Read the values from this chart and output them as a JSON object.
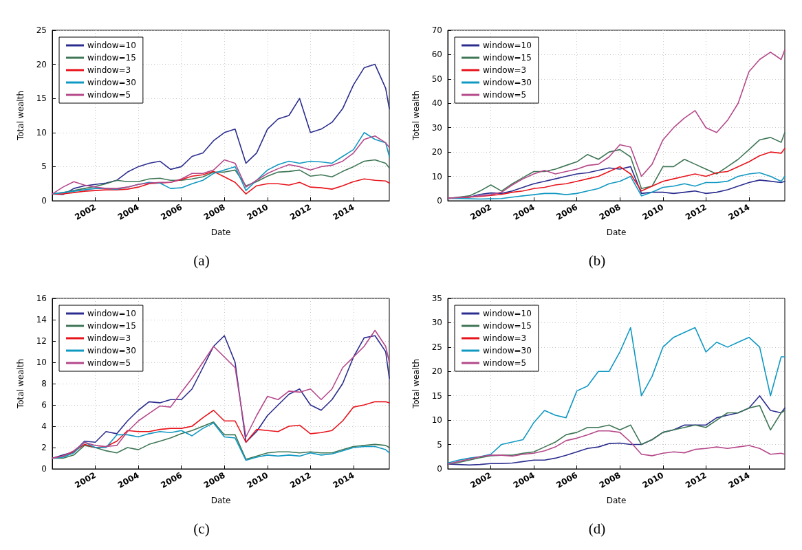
{
  "chart_data": [
    {
      "type": "line",
      "title": "(a)",
      "xlabel": "Date",
      "ylabel": "Total wealth",
      "grid": true,
      "legend": "top left",
      "x": [
        "2000-01",
        "2000-07",
        "2001-01",
        "2001-07",
        "2002-01",
        "2002-07",
        "2003-01",
        "2003-07",
        "2004-01",
        "2004-07",
        "2005-01",
        "2005-07",
        "2006-01",
        "2006-07",
        "2007-01",
        "2007-07",
        "2008-01",
        "2008-07",
        "2009-01",
        "2009-07",
        "2010-01",
        "2010-07",
        "2011-01",
        "2011-07",
        "2012-01",
        "2012-07",
        "2013-01",
        "2013-07",
        "2014-01",
        "2014-07",
        "2015-01",
        "2015-07",
        "2015-09"
      ],
      "xlim": [
        "2000-01",
        "2015-09"
      ],
      "xticks": [
        "2002",
        "2004",
        "2006",
        "2008",
        "2010",
        "2012",
        "2014"
      ],
      "ylim": [
        0,
        25
      ],
      "yticks": [
        0,
        5,
        10,
        15,
        20,
        25
      ],
      "series": [
        {
          "name": "window=10",
          "color": "#2b2d8e",
          "values": [
            1,
            0.9,
            1.8,
            2.2,
            2.4,
            2.6,
            3.0,
            4.2,
            5.0,
            5.5,
            5.8,
            4.6,
            5.0,
            6.5,
            7.0,
            8.8,
            10.0,
            10.5,
            5.5,
            7.0,
            10.5,
            12.0,
            12.5,
            15.0,
            10.0,
            10.5,
            11.5,
            13.5,
            17.0,
            19.5,
            20.0,
            16.5,
            13.5
          ]
        },
        {
          "name": "window=15",
          "color": "#3f7656",
          "values": [
            1,
            1.2,
            1.5,
            1.8,
            2.1,
            2.5,
            3.0,
            2.8,
            2.8,
            3.2,
            3.3,
            3.0,
            3.0,
            3.2,
            3.5,
            4.2,
            4.2,
            4.5,
            2.2,
            2.8,
            3.6,
            4.2,
            4.3,
            4.5,
            3.6,
            3.8,
            3.5,
            4.3,
            5.0,
            5.8,
            6.0,
            5.5,
            4.8
          ]
        },
        {
          "name": "window=3",
          "color": "#e8141c",
          "values": [
            1,
            1.0,
            1.2,
            1.4,
            1.5,
            1.6,
            1.6,
            1.7,
            2.0,
            2.5,
            2.6,
            2.7,
            3.1,
            3.6,
            3.8,
            4.3,
            3.5,
            2.7,
            1.0,
            2.2,
            2.5,
            2.5,
            2.3,
            2.7,
            2.0,
            1.9,
            1.7,
            2.2,
            2.8,
            3.2,
            3.0,
            2.9,
            2.6
          ]
        },
        {
          "name": "window=30",
          "color": "#0f98c2",
          "values": [
            1,
            1.2,
            1.4,
            1.6,
            1.8,
            1.8,
            1.7,
            2.0,
            2.4,
            2.7,
            2.6,
            1.8,
            1.9,
            2.5,
            3.0,
            4.0,
            4.5,
            5.0,
            1.5,
            3.0,
            4.5,
            5.3,
            5.8,
            5.5,
            5.8,
            5.7,
            5.5,
            6.5,
            7.5,
            10.0,
            9.0,
            8.5,
            6.5
          ]
        },
        {
          "name": "window=5",
          "color": "#b5488a",
          "values": [
            1,
            2.0,
            2.8,
            2.3,
            2.0,
            1.8,
            1.8,
            2.0,
            2.4,
            2.6,
            2.7,
            2.7,
            3.2,
            4.0,
            4.0,
            4.5,
            6.0,
            5.5,
            2.0,
            3.0,
            4.0,
            4.7,
            5.3,
            5.0,
            4.5,
            5.0,
            5.2,
            5.8,
            7.0,
            9.0,
            9.5,
            8.5,
            7.8
          ]
        }
      ]
    },
    {
      "type": "line",
      "title": "(b)",
      "xlabel": "Date",
      "ylabel": "Total wealth",
      "grid": true,
      "legend": "top left",
      "x": [
        "2000-01",
        "2000-07",
        "2001-01",
        "2001-07",
        "2002-01",
        "2002-07",
        "2003-01",
        "2003-07",
        "2004-01",
        "2004-07",
        "2005-01",
        "2005-07",
        "2006-01",
        "2006-07",
        "2007-01",
        "2007-07",
        "2008-01",
        "2008-07",
        "2009-01",
        "2009-07",
        "2010-01",
        "2010-07",
        "2011-01",
        "2011-07",
        "2012-01",
        "2012-07",
        "2013-01",
        "2013-07",
        "2014-01",
        "2014-07",
        "2015-01",
        "2015-07",
        "2015-09"
      ],
      "xlim": [
        "2000-01",
        "2015-09"
      ],
      "xticks": [
        "2002",
        "2004",
        "2006",
        "2008",
        "2010",
        "2012",
        "2014"
      ],
      "ylim": [
        0,
        70
      ],
      "yticks": [
        0,
        10,
        20,
        30,
        40,
        50,
        60,
        70
      ],
      "series": [
        {
          "name": "window=10",
          "color": "#2b2d8e",
          "values": [
            1,
            1.2,
            1.5,
            2.6,
            3.2,
            3,
            4,
            5.5,
            7,
            8,
            9,
            10,
            11,
            11.5,
            12.5,
            13.5,
            13,
            14,
            3,
            3.5,
            3.5,
            3,
            3.5,
            4,
            3,
            3.5,
            4.5,
            6,
            7.5,
            8.5,
            8,
            7.5,
            8
          ]
        },
        {
          "name": "window=15",
          "color": "#3f7656",
          "values": [
            1,
            1.5,
            2,
            4,
            6.5,
            4,
            7,
            9.5,
            12,
            12,
            13,
            14.5,
            16,
            19,
            17,
            20,
            21,
            18,
            5,
            6,
            14,
            14,
            17,
            15,
            13,
            11,
            14,
            17,
            21,
            25,
            26,
            24,
            28
          ]
        },
        {
          "name": "window=3",
          "color": "#e8141c",
          "values": [
            1,
            1.2,
            1.5,
            1.8,
            2.2,
            2.6,
            3.5,
            4,
            5,
            5.5,
            6.5,
            7,
            8,
            9,
            10,
            12,
            14,
            11,
            4,
            6,
            8,
            9,
            10,
            11,
            10,
            11.5,
            12,
            14,
            16,
            18.5,
            20,
            19.5,
            21.5
          ]
        },
        {
          "name": "window=30",
          "color": "#0f98c2",
          "values": [
            1,
            0.9,
            0.8,
            0.7,
            0.8,
            0.9,
            1.5,
            2,
            2.5,
            3,
            3,
            2.5,
            3,
            4,
            5,
            7,
            8,
            10,
            2,
            3.5,
            5.5,
            6,
            7,
            6,
            7.5,
            7.5,
            8,
            10,
            11,
            11.5,
            10,
            8,
            10
          ]
        },
        {
          "name": "window=5",
          "color": "#b5488a",
          "values": [
            1,
            1.3,
            1.6,
            2,
            2.5,
            3.5,
            6.5,
            9,
            11,
            12.5,
            11,
            12,
            13,
            14.5,
            15,
            18,
            23,
            22,
            10,
            15,
            25,
            30,
            34,
            37,
            30,
            28,
            33,
            40,
            53,
            58,
            61,
            58,
            62
          ]
        }
      ]
    },
    {
      "type": "line",
      "title": "(c)",
      "xlabel": "Date",
      "ylabel": "Total wealth",
      "grid": true,
      "legend": "top left",
      "x": [
        "2000-01",
        "2000-07",
        "2001-01",
        "2001-07",
        "2002-01",
        "2002-07",
        "2003-01",
        "2003-07",
        "2004-01",
        "2004-07",
        "2005-01",
        "2005-07",
        "2006-01",
        "2006-07",
        "2007-01",
        "2007-07",
        "2008-01",
        "2008-07",
        "2009-01",
        "2009-07",
        "2010-01",
        "2010-07",
        "2011-01",
        "2011-07",
        "2012-01",
        "2012-07",
        "2013-01",
        "2013-07",
        "2014-01",
        "2014-07",
        "2015-01",
        "2015-07",
        "2015-09"
      ],
      "xlim": [
        "2000-01",
        "2015-09"
      ],
      "xticks": [
        "2002",
        "2004",
        "2006",
        "2008",
        "2010",
        "2012",
        "2014"
      ],
      "ylim": [
        0,
        16
      ],
      "yticks": [
        0,
        2,
        4,
        6,
        8,
        10,
        12,
        14,
        16
      ],
      "series": [
        {
          "name": "window=10",
          "color": "#2b2d8e",
          "values": [
            1,
            1.3,
            1.6,
            2.6,
            2.5,
            3.5,
            3.3,
            4.5,
            5.5,
            6.3,
            6.2,
            6.5,
            6.5,
            7.5,
            9.5,
            11.5,
            12.5,
            10,
            2.5,
            3.5,
            5,
            6,
            7,
            7.5,
            6,
            5.5,
            6.5,
            8,
            10.5,
            12.3,
            12.5,
            11,
            8.5
          ]
        },
        {
          "name": "window=15",
          "color": "#3f7656",
          "values": [
            1,
            1.0,
            1.3,
            2.2,
            2.0,
            1.7,
            1.5,
            2.0,
            1.8,
            2.3,
            2.6,
            2.9,
            3.3,
            3.6,
            4.0,
            4.4,
            3.2,
            3.2,
            0.9,
            1.2,
            1.5,
            1.6,
            1.6,
            1.5,
            1.6,
            1.5,
            1.5,
            1.8,
            2.1,
            2.2,
            2.3,
            2.2,
            2.0
          ]
        },
        {
          "name": "window=3",
          "color": "#e8141c",
          "values": [
            1,
            1.2,
            1.6,
            2.3,
            2.0,
            2.1,
            2.6,
            3.6,
            3.5,
            3.5,
            3.7,
            3.8,
            3.8,
            4.0,
            4.8,
            5.5,
            4.5,
            4.5,
            2.5,
            3.7,
            3.6,
            3.5,
            4.0,
            4.1,
            3.3,
            3.4,
            3.6,
            4.5,
            5.8,
            6.0,
            6.3,
            6.3,
            6.2
          ]
        },
        {
          "name": "window=30",
          "color": "#0f98c2",
          "values": [
            1,
            1.1,
            1.5,
            2.5,
            2.0,
            2.0,
            3.2,
            3.2,
            3.0,
            3.3,
            3.5,
            3.4,
            3.6,
            3.1,
            3.8,
            4.3,
            3.0,
            2.9,
            0.8,
            1.1,
            1.3,
            1.2,
            1.3,
            1.2,
            1.5,
            1.3,
            1.4,
            1.7,
            2.0,
            2.1,
            2.1,
            1.8,
            1.5
          ]
        },
        {
          "name": "window=5",
          "color": "#b5488a",
          "values": [
            1,
            1.2,
            1.7,
            2.5,
            2.2,
            2.1,
            2.2,
            3.5,
            4.5,
            5.2,
            5.9,
            5.8,
            7.2,
            8.5,
            10,
            11.5,
            10.5,
            9.5,
            3,
            5,
            6.8,
            6.5,
            7.3,
            7.2,
            7.5,
            6.5,
            7.5,
            9.5,
            10.5,
            11.5,
            13,
            11.5,
            10
          ]
        }
      ]
    },
    {
      "type": "line",
      "title": "(d)",
      "xlabel": "Date",
      "ylabel": "Total wealth",
      "grid": true,
      "legend": "top left",
      "x": [
        "2000-01",
        "2000-07",
        "2001-01",
        "2001-07",
        "2002-01",
        "2002-07",
        "2003-01",
        "2003-07",
        "2004-01",
        "2004-07",
        "2005-01",
        "2005-07",
        "2006-01",
        "2006-07",
        "2007-01",
        "2007-07",
        "2008-01",
        "2008-07",
        "2009-01",
        "2009-07",
        "2010-01",
        "2010-07",
        "2011-01",
        "2011-07",
        "2012-01",
        "2012-07",
        "2013-01",
        "2013-07",
        "2014-01",
        "2014-07",
        "2015-01",
        "2015-07",
        "2015-09"
      ],
      "xlim": [
        "2000-01",
        "2015-09"
      ],
      "xticks": [
        "2002",
        "2004",
        "2006",
        "2008",
        "2010",
        "2012",
        "2014"
      ],
      "ylim": [
        0,
        35
      ],
      "yticks": [
        0,
        5,
        10,
        15,
        20,
        25,
        30,
        35
      ],
      "series": [
        {
          "name": "window=10",
          "color": "#2b2d8e",
          "values": [
            1,
            0.9,
            0.8,
            0.9,
            1.1,
            1.1,
            1.2,
            1.5,
            1.8,
            1.8,
            2.2,
            2.8,
            3.5,
            4.2,
            4.5,
            5.2,
            5.3,
            5,
            5,
            6,
            7.5,
            8,
            9,
            9,
            9,
            10.5,
            11,
            11.5,
            12.5,
            15,
            12,
            11.5,
            12.5
          ]
        },
        {
          "name": "window=15",
          "color": "#3f7656",
          "values": [
            1,
            1.3,
            1.8,
            2.3,
            2.7,
            2.8,
            2.8,
            3.2,
            3.5,
            4.5,
            5.5,
            7,
            7.5,
            8.5,
            8.5,
            9,
            8,
            9,
            5,
            6,
            7.5,
            8,
            8.5,
            9,
            8.5,
            10,
            11.5,
            11.5,
            12.5,
            13,
            8,
            11.5,
            12
          ]
        },
        {
          "name": "window=3",
          "color": "#e8141c",
          "values": [
            null,
            null,
            null,
            null,
            null,
            null,
            null,
            null,
            null,
            null,
            null,
            null,
            null,
            null,
            null,
            null,
            null,
            null,
            null,
            null,
            null,
            null,
            null,
            null,
            null,
            null,
            null,
            null,
            null,
            null,
            null,
            null,
            null
          ]
        },
        {
          "name": "window=30",
          "color": "#0f98c2",
          "values": [
            1.2,
            1.8,
            2.2,
            2.5,
            3,
            5,
            5.5,
            6,
            9.5,
            12,
            11,
            10.5,
            16,
            17,
            20,
            20,
            24,
            29,
            15,
            19,
            25,
            27,
            28,
            29,
            24,
            26,
            25,
            26,
            27,
            25,
            15,
            23,
            23
          ]
        },
        {
          "name": "window=5",
          "color": "#b5488a",
          "values": [
            1,
            1.5,
            2,
            2.5,
            2.8,
            2.8,
            2.6,
            3,
            3.2,
            3.7,
            4.5,
            5.8,
            6.3,
            7,
            7.8,
            7.8,
            7.5,
            5.5,
            3,
            2.7,
            3.2,
            3.5,
            3.3,
            4,
            4.2,
            4.5,
            4.2,
            4.5,
            4.8,
            4.2,
            3,
            3.2,
            3
          ]
        }
      ]
    }
  ]
}
